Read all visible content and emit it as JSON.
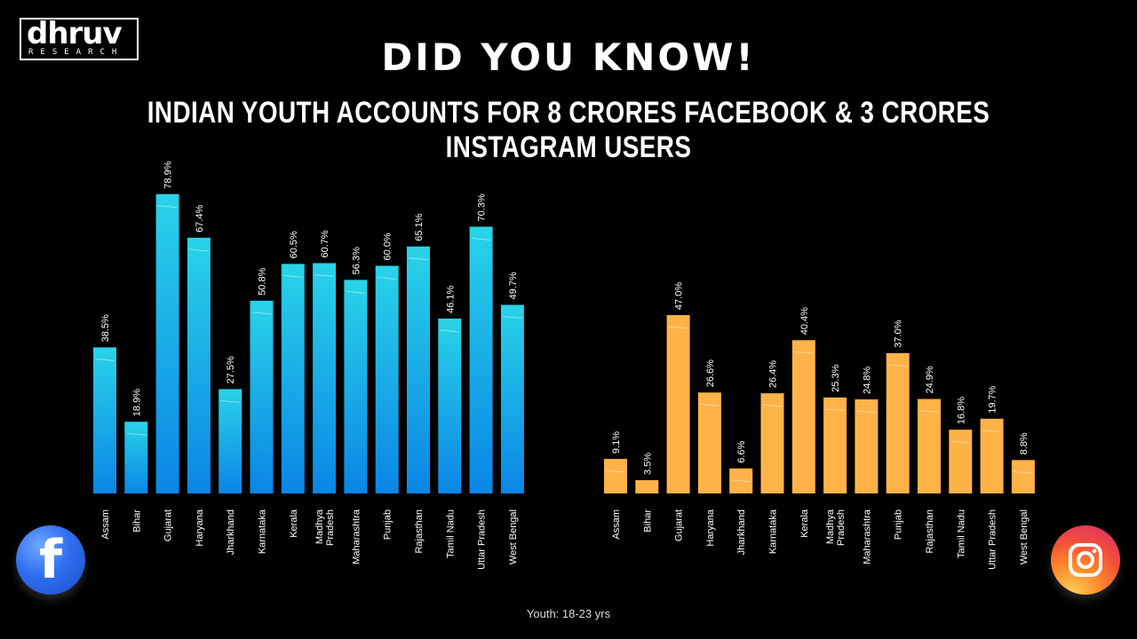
{
  "brand": {
    "name": "dhruv",
    "tagline": "RESEARCH"
  },
  "headline": "DID YOU KNOW!",
  "subheadline": "INDIAN YOUTH ACCOUNTS FOR 8 CRORES FACEBOOK & 3 CRORES INSTAGRAM USERS",
  "footnote": "Youth: 18-23 yrs",
  "icons": {
    "left": "facebook-icon",
    "right": "instagram-icon"
  },
  "colors": {
    "facebook_top": "#29d3e8",
    "facebook_bottom": "#0a86e6",
    "instagram_top": "#7b4ef0",
    "instagram_mid": "#f0407a",
    "instagram_bottom": "#ffb347"
  },
  "chart_data": [
    {
      "type": "bar",
      "platform": "Facebook",
      "categories": [
        "Assam",
        "Bihar",
        "Gujarat",
        "Haryana",
        "Jharkhand",
        "Karnataka",
        "Kerala",
        "Madhya Pradesh",
        "Maharashtra",
        "Punjab",
        "Rajasthan",
        "Tamil Nadu",
        "Uttar Pradesh",
        "West Bengal"
      ],
      "values": [
        38.5,
        18.9,
        78.9,
        67.4,
        27.5,
        50.8,
        60.5,
        60.7,
        56.3,
        60.0,
        65.1,
        46.1,
        70.3,
        49.7
      ],
      "labels": [
        "38.5%",
        "18.9%",
        "78.9%",
        "67.4%",
        "27.5%",
        "50.8%",
        "60.5%",
        "60.7%",
        "56.3%",
        "60.0%",
        "65.1%",
        "46.1%",
        "70.3%",
        "49.7%"
      ],
      "unit": "%",
      "ylim": [
        0,
        80
      ],
      "grid": false
    },
    {
      "type": "bar",
      "platform": "Instagram",
      "categories": [
        "Assam",
        "Bihar",
        "Gujarat",
        "Haryana",
        "Jharkhand",
        "Karnataka",
        "Kerala",
        "Madhya Pradesh",
        "Maharashtra",
        "Punjab",
        "Rajasthan",
        "Tamil Nadu",
        "Uttar Pradesh",
        "West Bengal"
      ],
      "values": [
        9.1,
        3.5,
        47.0,
        26.6,
        6.6,
        26.4,
        40.4,
        25.3,
        24.8,
        37.0,
        24.9,
        16.8,
        19.7,
        8.8
      ],
      "labels": [
        "9.1%",
        "3.5%",
        "47.0%",
        "26.6%",
        "6.6%",
        "26.4%",
        "40.4%",
        "25.3%",
        "24.8%",
        "37.0%",
        "24.9%",
        "16.8%",
        "19.7%",
        "8.8%"
      ],
      "unit": "%",
      "ylim": [
        0,
        80
      ],
      "grid": false
    }
  ]
}
